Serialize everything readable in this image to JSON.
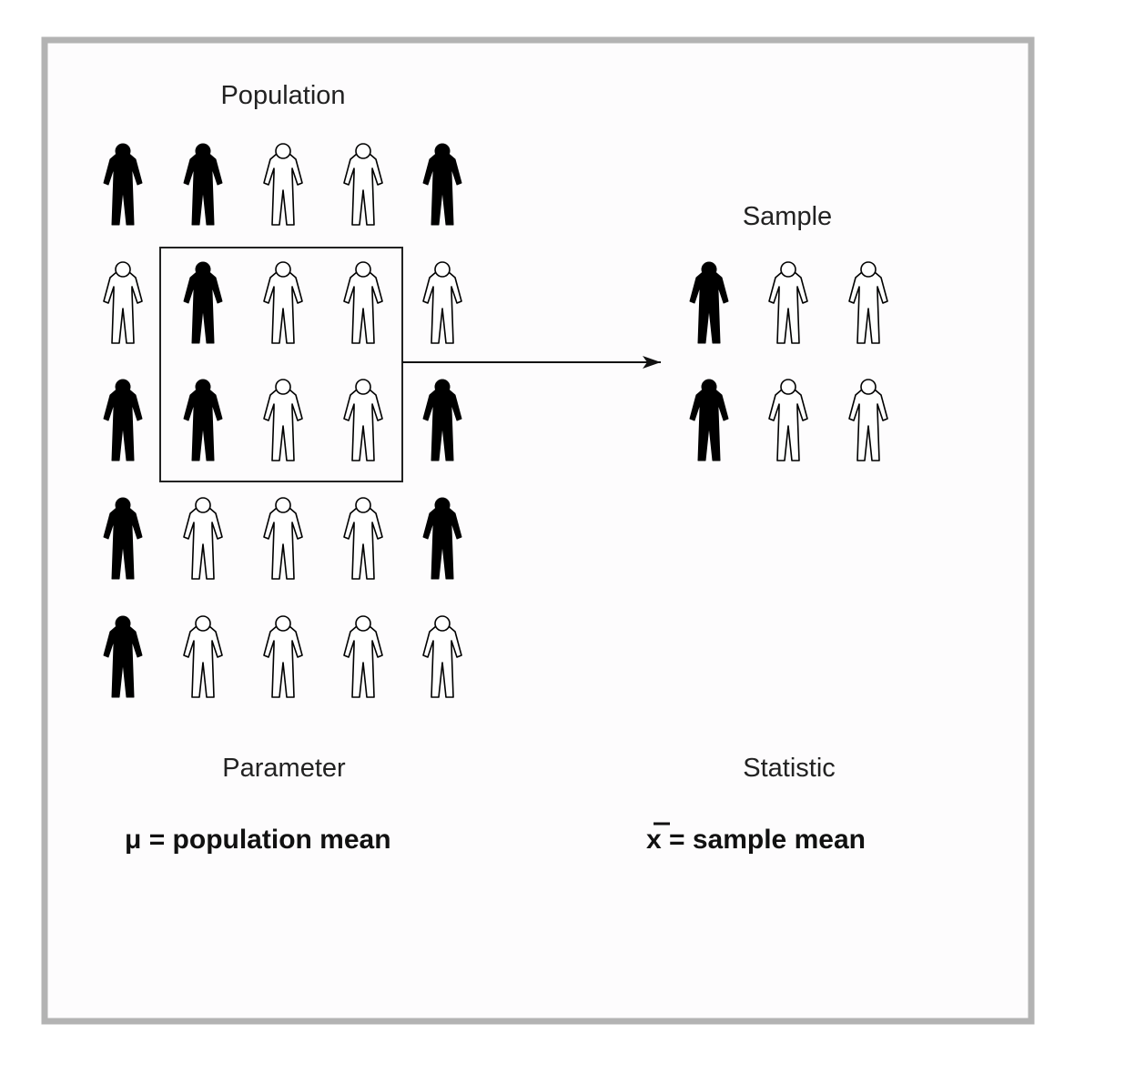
{
  "population": {
    "title": "Population",
    "rows": [
      [
        "filled",
        "filled",
        "outline",
        "outline",
        "filled"
      ],
      [
        "outline",
        "filled",
        "outline",
        "outline",
        "outline"
      ],
      [
        "filled",
        "filled",
        "outline",
        "outline",
        "filled"
      ],
      [
        "filled",
        "outline",
        "outline",
        "outline",
        "filled"
      ],
      [
        "filled",
        "outline",
        "outline",
        "outline",
        "outline"
      ]
    ]
  },
  "sample": {
    "title": "Sample",
    "rows": [
      [
        "filled",
        "outline",
        "outline"
      ],
      [
        "filled",
        "outline",
        "outline"
      ]
    ]
  },
  "parameter": {
    "heading": "Parameter",
    "definition": "μ = population mean"
  },
  "statistic": {
    "heading": "Statistic",
    "symbol": "x",
    "definition": "= sample mean"
  },
  "colors": {
    "frame": "#b3b3b3",
    "filled": "#000000",
    "outline": "#000000",
    "background": "#fdfcfd"
  },
  "icons": {
    "person": "person-icon",
    "arrow": "arrow-right-icon"
  }
}
